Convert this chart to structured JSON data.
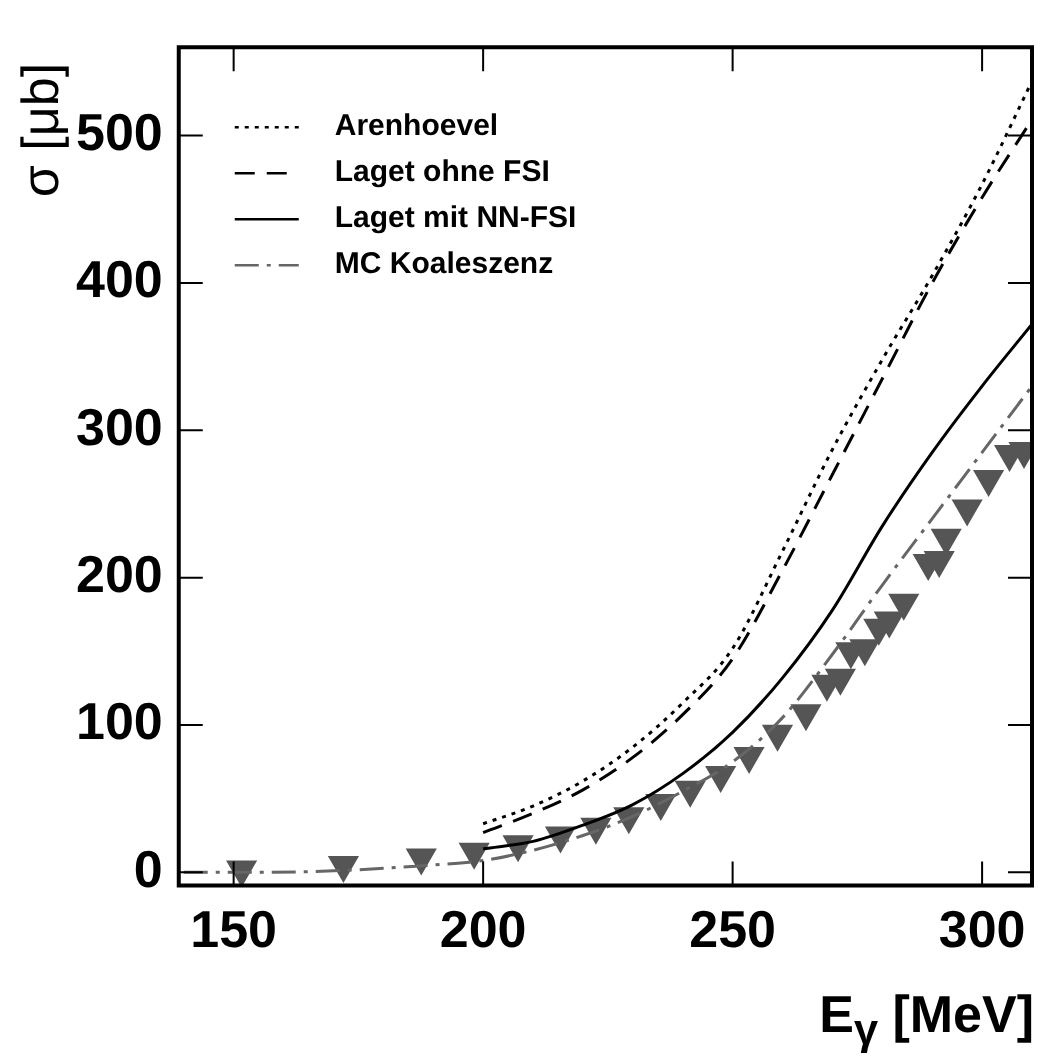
{
  "chart_data": {
    "type": "line",
    "xlabel": "E$_{γ}$   [MeV]",
    "ylabel": "σ   [μb]",
    "xlim": [
      139,
      310
    ],
    "xticks": [
      150,
      200,
      250,
      300
    ],
    "ylim": [
      -9,
      560
    ],
    "yticks": [
      0,
      100,
      200,
      300,
      400,
      500
    ],
    "grid": false,
    "legend": "top left",
    "series": [
      {
        "name": "Arenhoevel",
        "color": "#000000",
        "line_style": "dotted",
        "marker": "none",
        "x": [
          200,
          210,
          220,
          230,
          240,
          250,
          260,
          270,
          280,
          290,
          300,
          310
        ],
        "values": [
          33,
          45,
          62,
          85,
          115,
          152,
          218,
          287,
          348,
          405,
          467,
          537
        ]
      },
      {
        "name": "Laget ohne FSI",
        "color": "#000000",
        "line_style": "dashed",
        "marker": "none",
        "x": [
          200,
          210,
          220,
          230,
          240,
          250,
          260,
          270,
          280,
          290,
          300,
          310
        ],
        "values": [
          27,
          40,
          56,
          78,
          107,
          145,
          205,
          270,
          335,
          400,
          458,
          511
        ]
      },
      {
        "name": "Laget mit NN-FSI",
        "color": "#000000",
        "line_style": "solid",
        "marker": "none",
        "x": [
          200,
          210,
          220,
          230,
          240,
          250,
          260,
          270,
          280,
          290,
          300,
          310
        ],
        "values": [
          16,
          21,
          32,
          46,
          67,
          95,
          132,
          178,
          235,
          285,
          330,
          372
        ]
      },
      {
        "name": "MC Koaleszenz",
        "color": "#666666",
        "line_style": "dashdot",
        "marker": "none",
        "x": [
          140,
          150,
          170,
          190,
          200,
          210,
          220,
          230,
          240,
          250,
          260,
          270,
          280,
          290,
          300,
          310
        ],
        "values": [
          0,
          0,
          1,
          5,
          8,
          15,
          25,
          38,
          55,
          75,
          105,
          148,
          195,
          240,
          285,
          330
        ]
      },
      {
        "type": "scatter",
        "color": "#555555",
        "marker": "triangle",
        "x": [
          151.6,
          172,
          187.6,
          198.2,
          207,
          215.5,
          222.6,
          229.2,
          235.6,
          241.5,
          247.6,
          253.3,
          259,
          264.7,
          268.9,
          271.6,
          273.7,
          276.5,
          279.3,
          281.4,
          284.3,
          289.2,
          291.4,
          292.8,
          297,
          301.3,
          305.5,
          308.4
        ],
        "values": [
          2,
          5,
          10,
          14,
          19,
          25,
          31,
          38,
          47,
          56,
          66,
          79,
          94,
          108,
          128,
          132,
          150,
          152,
          166,
          171,
          183,
          210,
          212,
          227,
          247,
          267,
          284,
          286
        ]
      }
    ]
  }
}
